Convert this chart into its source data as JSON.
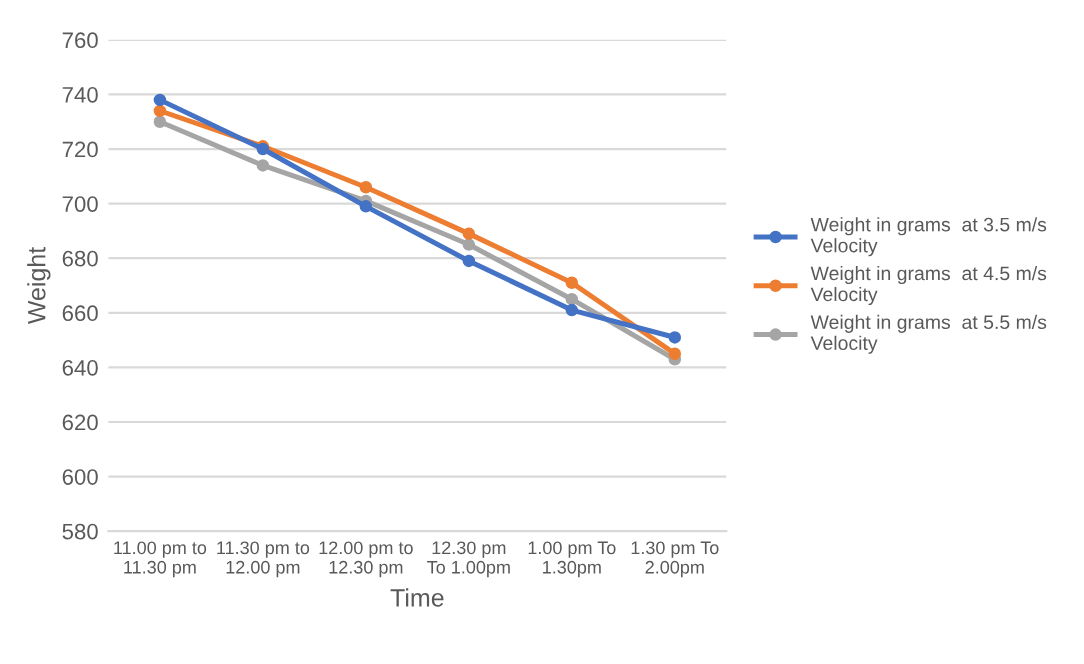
{
  "chart_data": {
    "type": "line",
    "xlabel": "Time",
    "ylabel": "Weight",
    "categories": [
      "11.00 pm to\n11.30 pm",
      "11.30 pm to\n12.00 pm",
      "12.00 pm to\n12.30 pm",
      "12.30 pm\nTo 1.00pm",
      "1.00 pm To\n1.30pm",
      "1.30 pm To\n2.00pm"
    ],
    "series": [
      {
        "name": "Weight in grams  at 3.5 m/s Velocity",
        "color": "#4472c4",
        "values": [
          738,
          720,
          699,
          679,
          661,
          651
        ]
      },
      {
        "name": "Weight in grams  at 4.5 m/s Velocity",
        "color": "#ed7d31",
        "values": [
          734,
          721,
          706,
          689,
          671,
          645
        ]
      },
      {
        "name": "Weight in grams  at 5.5 m/s Velocity",
        "color": "#a5a5a5",
        "values": [
          730,
          714,
          701,
          685,
          665,
          643
        ]
      }
    ],
    "ylim": [
      580,
      760
    ],
    "yticks": [
      580,
      600,
      620,
      640,
      660,
      680,
      700,
      720,
      740,
      760
    ],
    "grid": "y",
    "legend": "right",
    "marker": "circle",
    "line_style": "solid"
  }
}
